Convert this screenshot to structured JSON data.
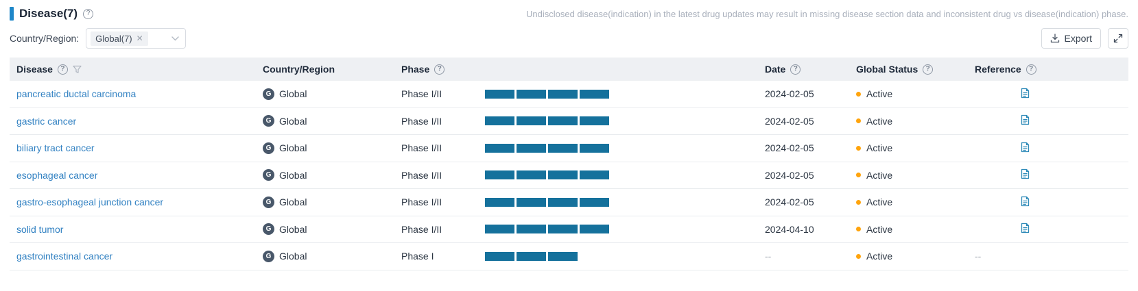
{
  "header": {
    "title": "Disease(7)",
    "note": "Undisclosed disease(indication) in the latest drug updates may result in missing disease section data and inconsistent drug vs disease(indication) phase."
  },
  "toolbar": {
    "filter_label": "Country/Region:",
    "filter_tag": "Global(7)",
    "export_label": "Export"
  },
  "table": {
    "columns": [
      "Disease",
      "Country/Region",
      "Phase",
      "Date",
      "Global Status",
      "Reference"
    ],
    "region_icon_letter": "G",
    "empty_placeholder": "--",
    "rows": [
      {
        "disease": "pancreatic ductal carcinoma",
        "region": "Global",
        "phase": "Phase I/II",
        "phase_segments": 4,
        "date": "2024-02-05",
        "status": "Active",
        "has_reference": true
      },
      {
        "disease": "gastric cancer",
        "region": "Global",
        "phase": "Phase I/II",
        "phase_segments": 4,
        "date": "2024-02-05",
        "status": "Active",
        "has_reference": true
      },
      {
        "disease": "biliary tract cancer",
        "region": "Global",
        "phase": "Phase I/II",
        "phase_segments": 4,
        "date": "2024-02-05",
        "status": "Active",
        "has_reference": true
      },
      {
        "disease": "esophageal cancer",
        "region": "Global",
        "phase": "Phase I/II",
        "phase_segments": 4,
        "date": "2024-02-05",
        "status": "Active",
        "has_reference": true
      },
      {
        "disease": "gastro-esophageal junction cancer",
        "region": "Global",
        "phase": "Phase I/II",
        "phase_segments": 4,
        "date": "2024-02-05",
        "status": "Active",
        "has_reference": true
      },
      {
        "disease": "solid tumor",
        "region": "Global",
        "phase": "Phase I/II",
        "phase_segments": 4,
        "date": "2024-04-10",
        "status": "Active",
        "has_reference": true
      },
      {
        "disease": "gastrointestinal cancer",
        "region": "Global",
        "phase": "Phase I",
        "phase_segments": 3,
        "date": "--",
        "status": "Active",
        "has_reference": false
      }
    ]
  },
  "colors": {
    "accent_blue": "#1e87c9",
    "link_blue": "#3181c2",
    "phase_bar": "#15719c",
    "status_active": "#ffa40d",
    "header_bg": "#eef0f3",
    "note_gray": "#a8afbb",
    "reference_icon_blue": "#2e8ab8"
  }
}
